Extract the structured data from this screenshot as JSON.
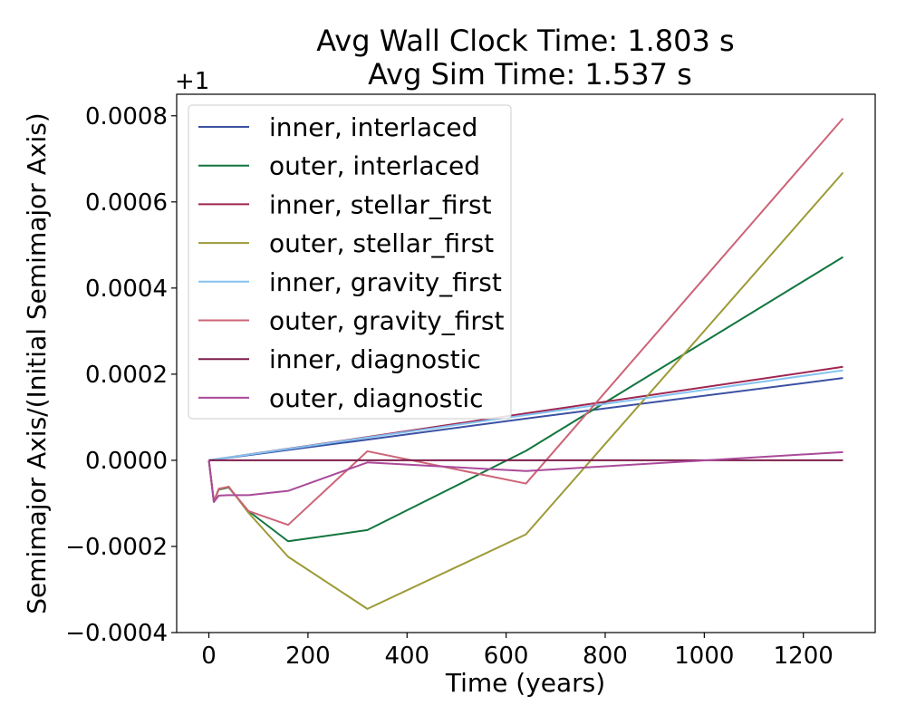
{
  "chart_data": {
    "type": "line",
    "title_line1": "Avg Wall Clock Time: 1.803 s",
    "title_line2": "Avg Sim Time: 1.537 s",
    "xlabel": "Time (years)",
    "ylabel": "Semimajor Axis/(Initial Semimajor Axis)",
    "y_offset_label": "+1",
    "xlim": [
      -65,
      1345
    ],
    "ylim": [
      -0.0004,
      0.00085
    ],
    "xticks": [
      0,
      200,
      400,
      600,
      800,
      1000,
      1200
    ],
    "xtick_labels": [
      "0",
      "200",
      "400",
      "600",
      "800",
      "1000",
      "1200"
    ],
    "yticks": [
      -0.0004,
      -0.0002,
      0.0,
      0.0002,
      0.0004,
      0.0006,
      0.0008
    ],
    "ytick_labels": [
      "−0.0004",
      "−0.0002",
      "0.0000",
      "0.0002",
      "0.0004",
      "0.0006",
      "0.0008"
    ],
    "legend_position": "upper-left",
    "grid": false,
    "series": [
      {
        "name": "inner, interlaced",
        "color": "#3b51a3",
        "x": [
          0,
          10,
          20,
          40,
          80,
          160,
          320,
          640,
          1280
        ],
        "y": [
          0.0,
          1.5e-06,
          3e-06,
          6e-06,
          1.2e-05,
          2.4e-05,
          4.8e-05,
          9.7e-05,
          0.000191
        ]
      },
      {
        "name": "outer, interlaced",
        "color": "#12763f",
        "x": [
          0,
          10,
          20,
          40,
          80,
          160,
          320,
          640,
          1280
        ],
        "y": [
          0.0,
          -9.5e-05,
          -6.8e-05,
          -6.3e-05,
          -0.000118,
          -0.000188,
          -0.000162,
          2.2e-05,
          0.000472
        ]
      },
      {
        "name": "inner, stellar_first",
        "color": "#9f2550",
        "x": [
          0,
          10,
          20,
          40,
          80,
          160,
          320,
          640,
          1280
        ],
        "y": [
          0.0,
          1.7e-06,
          3.4e-06,
          6.8e-06,
          1.36e-05,
          2.7e-05,
          5.4e-05,
          0.000109,
          0.000217
        ]
      },
      {
        "name": "outer, stellar_first",
        "color": "#9c9a37",
        "x": [
          0,
          10,
          20,
          40,
          80,
          160,
          320,
          640,
          1280
        ],
        "y": [
          0.0,
          -9.6e-05,
          -6.7e-05,
          -6.1e-05,
          -0.000122,
          -0.000224,
          -0.000345,
          -0.000172,
          0.000668
        ]
      },
      {
        "name": "inner, gravity_first",
        "color": "#84c2f0",
        "x": [
          0,
          10,
          20,
          40,
          80,
          160,
          320,
          640,
          1280
        ],
        "y": [
          0.0,
          1.6e-06,
          3.3e-06,
          6.6e-06,
          1.32e-05,
          2.64e-05,
          5.3e-05,
          0.000105,
          0.000209
        ]
      },
      {
        "name": "outer, gravity_first",
        "color": "#cc6477",
        "x": [
          0,
          10,
          20,
          40,
          80,
          160,
          320,
          640,
          1280
        ],
        "y": [
          0.0,
          -9.5e-05,
          -6.6e-05,
          -6.2e-05,
          -0.000118,
          -0.00015,
          2.1e-05,
          -5.4e-05,
          0.000794
        ]
      },
      {
        "name": "inner, diagnostic",
        "color": "#7e1c4b",
        "x": [
          0,
          10,
          20,
          40,
          80,
          160,
          320,
          640,
          1280
        ],
        "y": [
          0.0,
          0.0,
          0.0,
          0.0,
          0.0,
          0.0,
          0.0,
          0.0,
          0.0
        ]
      },
      {
        "name": "outer, diagnostic",
        "color": "#aa4a9a",
        "x": [
          0,
          10,
          20,
          40,
          80,
          160,
          320,
          640,
          1280
        ],
        "y": [
          0.0,
          -9.7e-05,
          -8.2e-05,
          -8.1e-05,
          -8.1e-05,
          -7.1e-05,
          -5e-06,
          -2.5e-05,
          1.9e-05
        ]
      }
    ]
  }
}
